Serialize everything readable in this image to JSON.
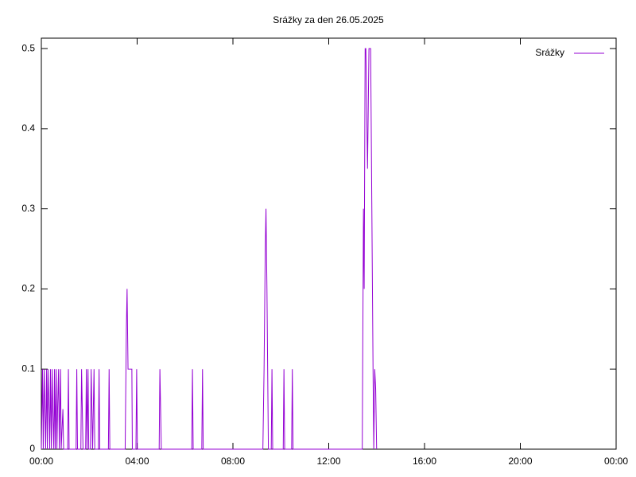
{
  "chart_data": {
    "type": "line",
    "title": "Srážky za den 26.05.2025",
    "x": [
      0.0,
      0.05,
      0.08,
      0.12,
      0.15,
      0.18,
      0.22,
      0.25,
      0.28,
      0.32,
      0.35,
      0.38,
      0.42,
      0.45,
      0.48,
      0.52,
      0.55,
      0.58,
      0.62,
      0.65,
      0.68,
      0.72,
      0.75,
      0.8,
      0.83,
      0.9,
      0.93,
      1.1,
      1.13,
      1.16,
      1.45,
      1.48,
      1.51,
      1.65,
      1.68,
      1.71,
      1.74,
      1.85,
      1.88,
      1.91,
      1.95,
      1.98,
      2.05,
      2.08,
      2.11,
      2.14,
      2.2,
      2.23,
      2.38,
      2.41,
      2.44,
      2.8,
      2.83,
      2.86,
      3.5,
      3.55,
      3.58,
      3.62,
      3.7,
      3.78,
      3.8,
      3.95,
      3.98,
      4.01,
      4.92,
      4.95,
      4.98,
      5.01,
      6.28,
      6.31,
      6.34,
      6.7,
      6.73,
      6.76,
      9.25,
      9.3,
      9.35,
      9.38,
      9.42,
      9.45,
      9.48,
      9.6,
      9.63,
      9.66,
      10.1,
      10.13,
      10.16,
      10.45,
      10.48,
      10.51,
      13.4,
      13.45,
      13.48,
      13.52,
      13.55,
      13.62,
      13.68,
      13.75,
      13.8,
      13.85,
      13.88,
      13.92,
      13.96,
      14.0
    ],
    "series": [
      {
        "name": "Srážky",
        "color": "#9400d3",
        "values": [
          0,
          0.1,
          0,
          0.1,
          0.05,
          0,
          0.1,
          0,
          0.1,
          0.05,
          0,
          0.1,
          0,
          0.1,
          0.05,
          0,
          0.1,
          0,
          0.1,
          0,
          0.05,
          0.1,
          0,
          0.1,
          0,
          0.05,
          0,
          0,
          0.1,
          0,
          0,
          0.1,
          0,
          0,
          0.1,
          0.05,
          0,
          0,
          0.1,
          0,
          0.1,
          0,
          0,
          0.1,
          0.05,
          0,
          0.1,
          0,
          0,
          0.1,
          0,
          0,
          0.1,
          0,
          0,
          0.15,
          0.2,
          0.1,
          0.1,
          0.1,
          0,
          0,
          0.1,
          0,
          0,
          0.1,
          0.05,
          0,
          0,
          0.1,
          0,
          0,
          0.1,
          0,
          0,
          0.1,
          0.25,
          0.3,
          0.2,
          0.1,
          0,
          0,
          0.1,
          0,
          0,
          0.1,
          0,
          0,
          0.1,
          0,
          0,
          0.3,
          0.2,
          0.5,
          0.5,
          0.35,
          0.5,
          0.5,
          0.3,
          0.1,
          0,
          0.1,
          0.075,
          0
        ]
      }
    ],
    "xlim": [
      0,
      24
    ],
    "xticks": [
      {
        "value": 0,
        "label": "00:00"
      },
      {
        "value": 4,
        "label": "04:00"
      },
      {
        "value": 8,
        "label": "08:00"
      },
      {
        "value": 12,
        "label": "12:00"
      },
      {
        "value": 16,
        "label": "16:00"
      },
      {
        "value": 20,
        "label": "20:00"
      },
      {
        "value": 24,
        "label": "00:00"
      }
    ],
    "ylim": [
      0,
      0.513
    ],
    "yticks": [
      0,
      0.1,
      0.2,
      0.3,
      0.4,
      0.5
    ],
    "legend": "top-right"
  }
}
